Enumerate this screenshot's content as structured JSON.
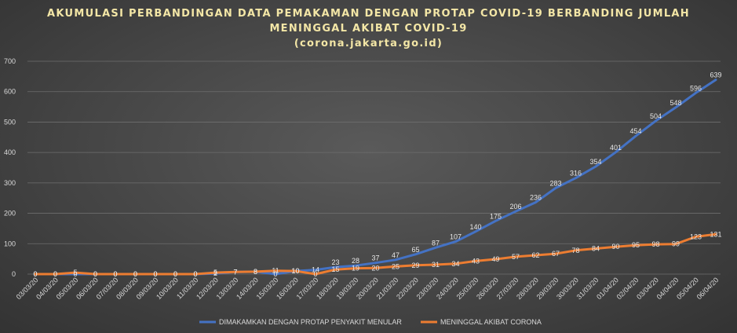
{
  "chart_data": {
    "type": "line",
    "title": "AKUMULASI PERBANDINGAN DATA PEMAKAMAN DENGAN PROTAP COVID-19 BERBANDING JUMLAH",
    "title_line2": "MENINGGAL AKIBAT COVID-19",
    "subtitle": "(corona.jakarta.go.id)",
    "categories": [
      "03/03/20",
      "04/03/20",
      "05/03/20",
      "06/03/20",
      "07/03/20",
      "08/03/20",
      "09/03/20",
      "10/03/20",
      "11/03/20",
      "12/03/20",
      "13/03/20",
      "14/03/20",
      "15/03/20",
      "16/03/20",
      "17/03/20",
      "18/03/20",
      "19/03/20",
      "20/03/20",
      "21/03/20",
      "22/03/20",
      "23/03/20",
      "24/03/20",
      "25/03/20",
      "26/03/20",
      "27/03/20",
      "28/03/20",
      "29/03/20",
      "30/03/20",
      "31/03/20",
      "01/04/20",
      "02/04/20",
      "03/04/20",
      "04/04/20",
      "05/04/20",
      "06/04/20"
    ],
    "series": [
      {
        "name": "DIMAKAMKAN DENGAN PROTAP PENYAKIT MENULAR",
        "color": "#4472c4",
        "values": [
          0,
          0,
          0,
          0,
          0,
          0,
          0,
          0,
          0,
          2,
          7,
          8,
          0,
          10,
          14,
          23,
          28,
          37,
          47,
          65,
          87,
          107,
          140,
          175,
          206,
          236,
          283,
          316,
          354,
          401,
          454,
          504,
          548,
          596,
          639
        ]
      },
      {
        "name": "MENINGGAL AKIBAT CORONA",
        "color": "#ed7d31",
        "values": [
          0,
          0,
          5,
          0,
          0,
          0,
          0,
          0,
          0,
          5,
          7,
          8,
          11,
          10,
          0,
          15,
          19,
          20,
          25,
          29,
          31,
          34,
          43,
          49,
          57,
          62,
          67,
          78,
          84,
          90,
          95,
          98,
          99,
          123,
          131
        ]
      }
    ],
    "ylim": [
      0,
      700
    ],
    "yticks": [
      0,
      100,
      200,
      300,
      400,
      500,
      600,
      700
    ],
    "grid": true,
    "legend": "bottom"
  }
}
